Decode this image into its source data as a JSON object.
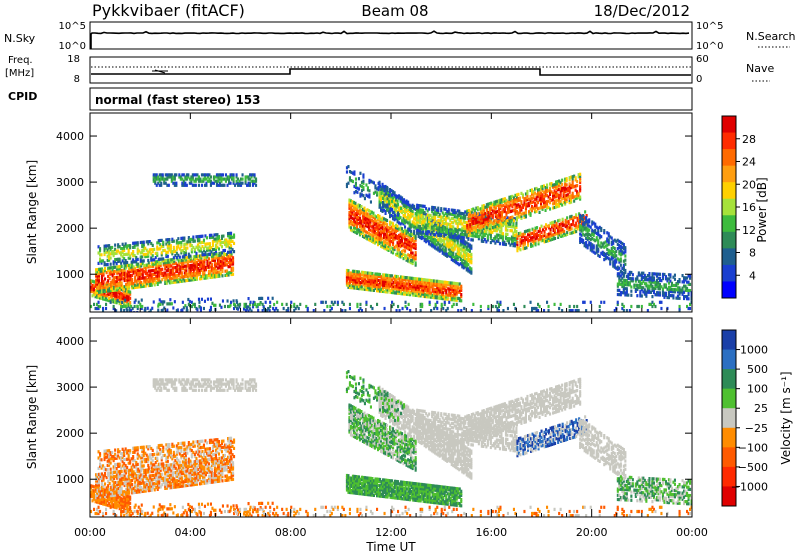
{
  "header": {
    "title": "Pykkvibaer (fitACF)",
    "beam": "Beam 08",
    "date": "18/Dec/2012"
  },
  "top_panels": {
    "nsky_label": "N.Sky",
    "nsky_ticks": [
      "10^5",
      "10^0"
    ],
    "nsearch_label": "N.Search",
    "nsearch_ticks": [
      "10^5",
      "10^0"
    ],
    "freq_label_1": "Freq.",
    "freq_label_2": "[MHz]",
    "freq_ticks": [
      "18",
      "8"
    ],
    "nave_label": "Nave",
    "nave_ticks": [
      "60",
      "0"
    ],
    "cpid_label": "CPID",
    "cpid_value": "normal (fast stereo) 153"
  },
  "chart_data": [
    {
      "type": "heatmap",
      "name": "power",
      "ylabel": "Slant Range [km]",
      "yticks": [
        "4000",
        "3000",
        "2000",
        "1000"
      ],
      "ylim": [
        180,
        4500
      ],
      "colorbar": {
        "label": "Power [dB]",
        "ticks": [
          "28",
          "24",
          "20",
          "16",
          "12",
          "8",
          "4"
        ],
        "colors": [
          "#e00000",
          "#ff2c00",
          "#ff6a00",
          "#ff9e10",
          "#ffd000",
          "#a6e23a",
          "#3dbb3d",
          "#2e8b57",
          "#1f5f8f",
          "#1a3fd0",
          "#0000ff"
        ]
      }
    },
    {
      "type": "heatmap",
      "name": "velocity",
      "ylabel": "Slant Range [km]",
      "yticks": [
        "4000",
        "3000",
        "2000",
        "1000"
      ],
      "ylim": [
        180,
        4500
      ],
      "xlabel": "Time UT",
      "xticks": [
        "00:00",
        "04:00",
        "08:00",
        "12:00",
        "16:00",
        "20:00",
        "00:00"
      ],
      "colorbar": {
        "label": "Velocity [m s⁻¹]",
        "ticks": [
          "1000",
          "500",
          "100",
          "25",
          "−25",
          "−100",
          "−500",
          "−1000"
        ],
        "colors": [
          "#1a3fa8",
          "#2b6fc2",
          "#2e8b57",
          "#4fc030",
          "#c8c8c0",
          "#ff8c00",
          "#ff5a00",
          "#ff2a00",
          "#e00000"
        ]
      }
    }
  ]
}
